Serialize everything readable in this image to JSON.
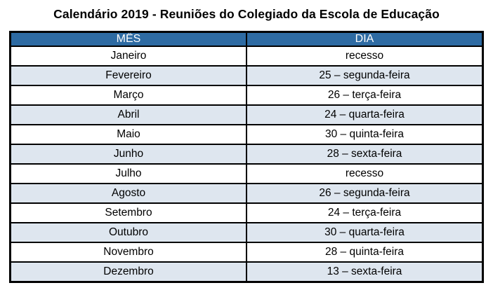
{
  "title": "Calendário 2019 - Reuniões do Colegiado da Escola de Educação",
  "colors": {
    "header_bg": "#2E6BA3",
    "header_text": "#FFFFFF",
    "row_bg": "#FFFFFF",
    "row_alt_bg": "#DEE6EF",
    "border": "#000000",
    "title_text": "#000000"
  },
  "table": {
    "headers": [
      "MÊS",
      "DIA"
    ],
    "rows": [
      [
        "Janeiro",
        "recesso"
      ],
      [
        "Fevereiro",
        "25 – segunda-feira"
      ],
      [
        "Março",
        "26 – terça-feira"
      ],
      [
        "Abril",
        "24 – quarta-feira"
      ],
      [
        "Maio",
        "30 – quinta-feira"
      ],
      [
        "Junho",
        "28 – sexta-feira"
      ],
      [
        "Julho",
        "recesso"
      ],
      [
        "Agosto",
        "26 – segunda-feira"
      ],
      [
        "Setembro",
        "24 – terça-feira"
      ],
      [
        "Outubro",
        "30 – quarta-feira"
      ],
      [
        "Novembro",
        "28 – quinta-feira"
      ],
      [
        "Dezembro",
        "13 – sexta-feira"
      ]
    ]
  }
}
